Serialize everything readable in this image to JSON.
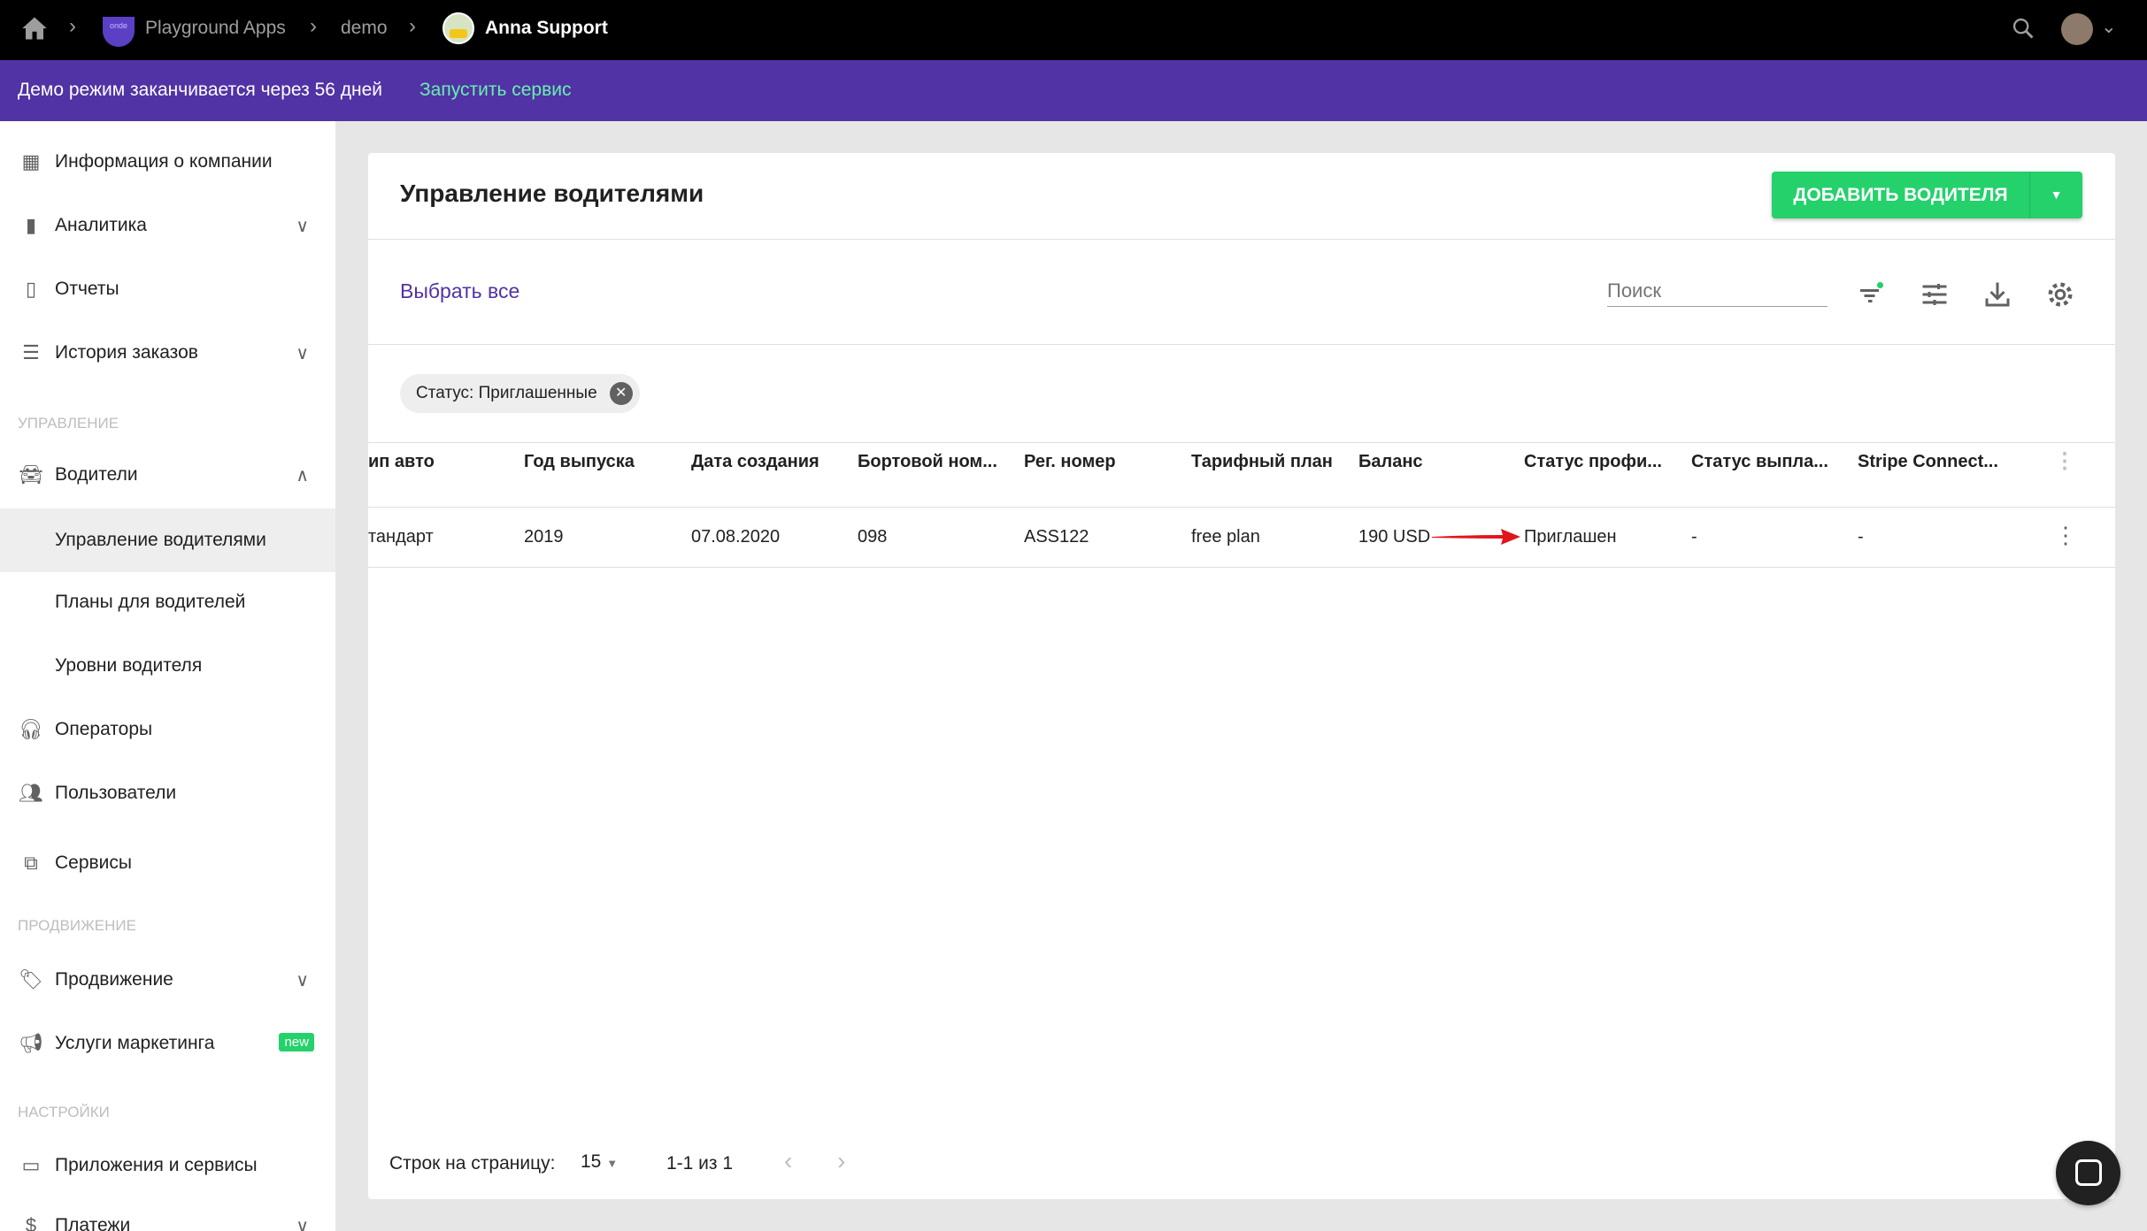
{
  "topbar": {
    "home_icon": "home-icon",
    "org": "Playground Apps",
    "org_logo_text": "onde",
    "env": "demo",
    "user": "Anna Support"
  },
  "banner": {
    "text": "Демо режим заканчивается через 56 дней",
    "link": "Запустить сервис",
    "link_color": "#69f0ae"
  },
  "sidebar": {
    "items": [
      {
        "label": "Информация о компании",
        "icon": "dashboard-icon"
      },
      {
        "label": "Аналитика",
        "icon": "bar-chart-icon"
      },
      {
        "label": "Отчеты",
        "icon": "report-icon"
      },
      {
        "label": "История заказов",
        "icon": "list-icon"
      }
    ],
    "section_manage": "УПРАВЛЕНИЕ",
    "drivers": "Водители",
    "drivers_sub": [
      "Управление водителями",
      "Планы для водителей",
      "Уровни водителя"
    ],
    "operators": "Операторы",
    "users": "Пользователи",
    "services": "Сервисы",
    "section_promo": "ПРОДВИЖЕНИЕ",
    "promo": "Продвижение",
    "marketing": "Услуги маркетинга",
    "new_badge": "new",
    "section_settings": "НАСТРОЙКИ",
    "apps": "Приложения и сервисы",
    "payments": "Платежи"
  },
  "card": {
    "title": "Управление водителями",
    "add_button": "ДОБАВИТЬ ВОДИТЕЛЯ",
    "select_all": "Выбрать все",
    "search_placeholder": "Поиск",
    "chip": "Статус: Приглашенные",
    "columns": [
      "ип авто",
      "Год выпуска",
      "Дата создания",
      "Бортовой ном...",
      "Рег. номер",
      "Тарифный план",
      "Баланс",
      "Статус профи...",
      "Статус выпла...",
      "Stripe Connect..."
    ],
    "rows": [
      [
        "тандарт",
        "2019",
        "07.08.2020",
        "098",
        "ASS122",
        "free plan",
        "190 USD",
        "Приглашен",
        "-",
        "-"
      ]
    ],
    "footer": {
      "rows_label": "Строк на страницу:",
      "rows_value": "15",
      "range": "1-1 из 1"
    }
  },
  "colors": {
    "accent": "#5133a5",
    "green": "#24d16b",
    "arrow": "#e0161c"
  }
}
